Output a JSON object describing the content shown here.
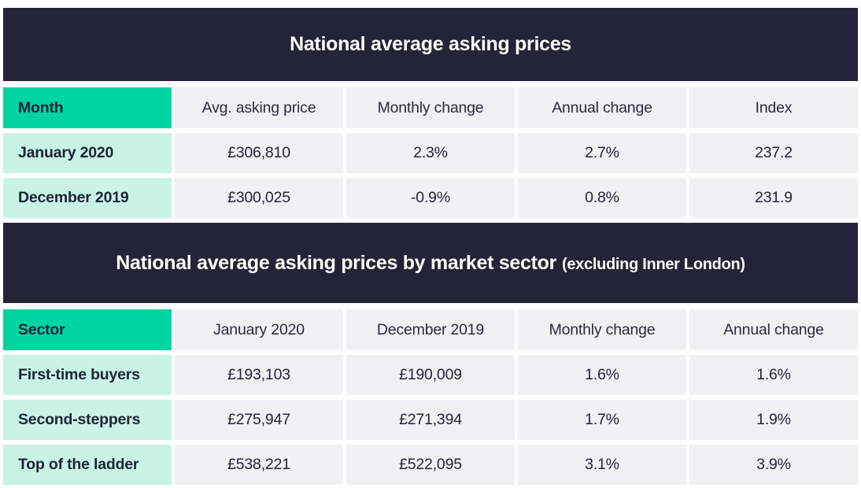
{
  "colors": {
    "banner_background": "#252337",
    "banner_text": "#ffffff",
    "corner_header_background": "#00d5a2",
    "row_label_background": "#c9f4e5",
    "data_cell_background": "#f1f1f4",
    "text_dark": "#252336"
  },
  "chart_data": [
    {
      "type": "table",
      "title": "National average asking prices",
      "columns": [
        "Month",
        "Avg. asking price",
        "Monthly change",
        "Annual change",
        "Index"
      ],
      "rows": [
        [
          "January 2020",
          "£306,810",
          "2.3%",
          "2.7%",
          "237.2"
        ],
        [
          "December 2019",
          "£300,025",
          "-0.9%",
          "0.8%",
          "231.9"
        ]
      ]
    },
    {
      "type": "table",
      "title": "National average asking prices by market sector",
      "title_suffix": "(excluding Inner London)",
      "columns": [
        "Sector",
        "January 2020",
        "December 2019",
        "Monthly change",
        "Annual change"
      ],
      "rows": [
        [
          "First-time buyers",
          "£193,103",
          "£190,009",
          "1.6%",
          "1.6%"
        ],
        [
          "Second-steppers",
          "£275,947",
          "£271,394",
          "1.7%",
          "1.9%"
        ],
        [
          "Top of the ladder",
          "£538,221",
          "£522,095",
          "3.1%",
          "3.9%"
        ]
      ]
    }
  ]
}
